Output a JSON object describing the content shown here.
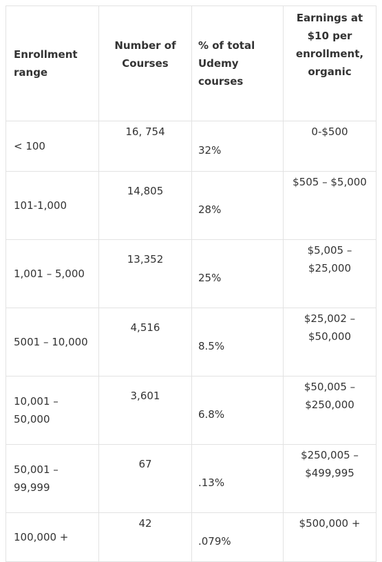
{
  "table": {
    "header": [
      "Enrollment range",
      "Number of Courses",
      "% of total Udemy courses",
      "Earnings at $10 per enrollment, organic"
    ],
    "rows": [
      [
        "< 100",
        "16, 754",
        "32%",
        "0-$500"
      ],
      [
        "101-1,000",
        "14,805",
        "28%",
        "$505 – $5,000"
      ],
      [
        "1,001 – 5,000",
        "13,352",
        "25%",
        "$5,005 – $25,000"
      ],
      [
        "5001 – 10,000",
        "4,516",
        "8.5%",
        "$25,002 – $50,000"
      ],
      [
        "10,001 – 50,000",
        "3,601",
        "6.8%",
        "$50,005 – $250,000"
      ],
      [
        "50,001 – 99,999",
        "67",
        ".13%",
        "$250,005 – $499,995"
      ],
      [
        "100,000 +",
        "42",
        ".079%",
        "$500,000 +"
      ]
    ]
  }
}
